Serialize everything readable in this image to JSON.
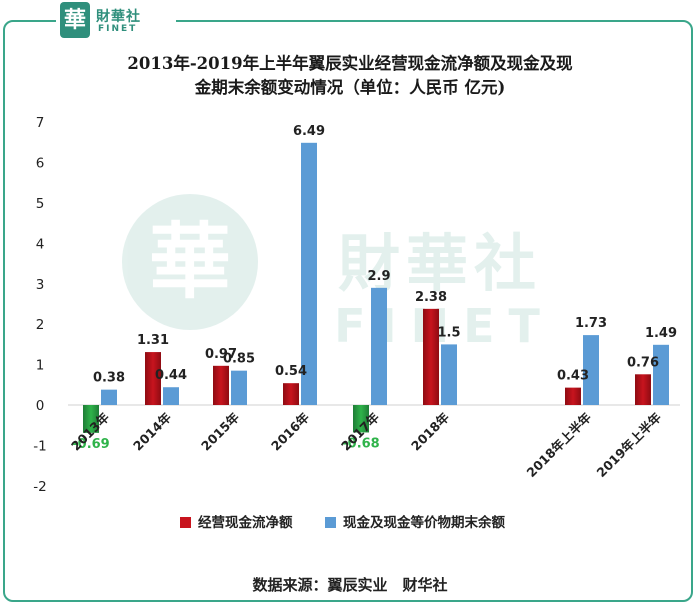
{
  "logo": {
    "badge": "華",
    "cn": "財華社",
    "en": "FINET"
  },
  "watermark": {
    "badge": "華",
    "cn": "財華社",
    "en": "FINET"
  },
  "title_line1": "2013年-2019年上半年翼辰实业经营现金流净额及现金及现",
  "title_line2": "金期末余额变动情况（单位：人民币 亿元)",
  "source": "数据来源：翼辰实业　财华社",
  "colors": {
    "frame": "#3aa68a",
    "red": "#c8141e",
    "blue": "#5b9bd5",
    "green": "#2fb34a"
  },
  "chart_data": {
    "type": "bar",
    "categories": [
      "2013年",
      "2014年",
      "2015年",
      "2016年",
      "2017年",
      "2018年",
      "",
      "2018年上半年",
      "2019年上半年"
    ],
    "series": [
      {
        "name": "经营现金流净额",
        "values": [
          -0.69,
          1.31,
          0.97,
          0.54,
          -0.68,
          2.38,
          null,
          0.43,
          0.76
        ],
        "labels": [
          "-0.69",
          "1.31",
          "0.97",
          "0.54",
          "-0.68",
          "2.38",
          "",
          "0.43",
          "0.76"
        ]
      },
      {
        "name": "现金及现金等价物期末余额",
        "values": [
          0.38,
          0.44,
          0.85,
          6.49,
          2.9,
          1.5,
          null,
          1.73,
          1.49
        ],
        "labels": [
          "0.38",
          "0.44",
          "0.85",
          "6.49",
          "2.9",
          "1.5",
          "",
          "1.73",
          "1.49"
        ]
      }
    ],
    "y_ticks": [
      "-2",
      "-1",
      "0",
      "1",
      "2",
      "3",
      "4",
      "5",
      "6",
      "7"
    ],
    "ylim": [
      -2,
      7
    ],
    "legend_position": "bottom",
    "grid": false
  }
}
